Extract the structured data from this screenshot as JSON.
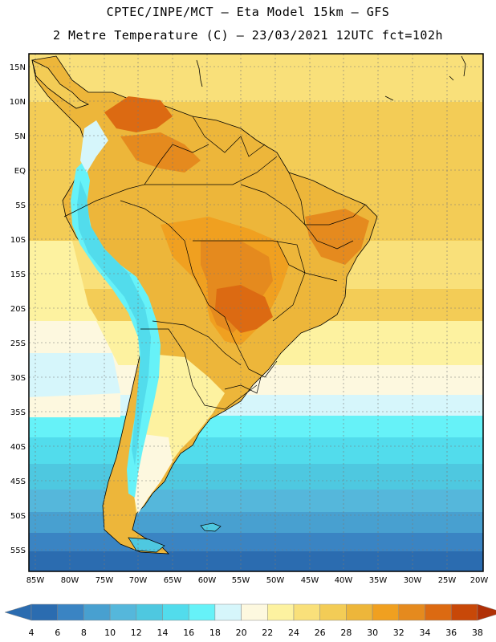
{
  "header": {
    "line1": "CPTEC/INPE/MCT –  Eta Model 15km – GFS",
    "line2": "2 Metre Temperature (C) – 23/03/2021 12UTC fct=102h"
  },
  "map": {
    "region": "South America",
    "lat_labels": [
      "15N",
      "10N",
      "5N",
      "EQ",
      "5S",
      "10S",
      "15S",
      "20S",
      "25S",
      "30S",
      "35S",
      "40S",
      "45S",
      "50S",
      "55S"
    ],
    "lon_labels": [
      "85W",
      "80W",
      "75W",
      "70W",
      "65W",
      "60W",
      "55W",
      "50W",
      "45W",
      "40W",
      "35W",
      "30W",
      "25W",
      "20W"
    ]
  },
  "colorbar": {
    "labels": [
      "4",
      "6",
      "8",
      "10",
      "12",
      "14",
      "16",
      "18",
      "20",
      "22",
      "24",
      "26",
      "28",
      "30",
      "32",
      "34",
      "36",
      "38"
    ],
    "colors": [
      "#2b6cb0",
      "#3a84c3",
      "#48a0d0",
      "#55b7db",
      "#4ec8e0",
      "#52dcec",
      "#66f2f8",
      "#d6f6fb",
      "#fdf8df",
      "#fdf2a0",
      "#f9e07a",
      "#f3cc56",
      "#edb63a",
      "#f0a020",
      "#e58a1e",
      "#dc6a12",
      "#c84808",
      "#b03006"
    ]
  }
}
